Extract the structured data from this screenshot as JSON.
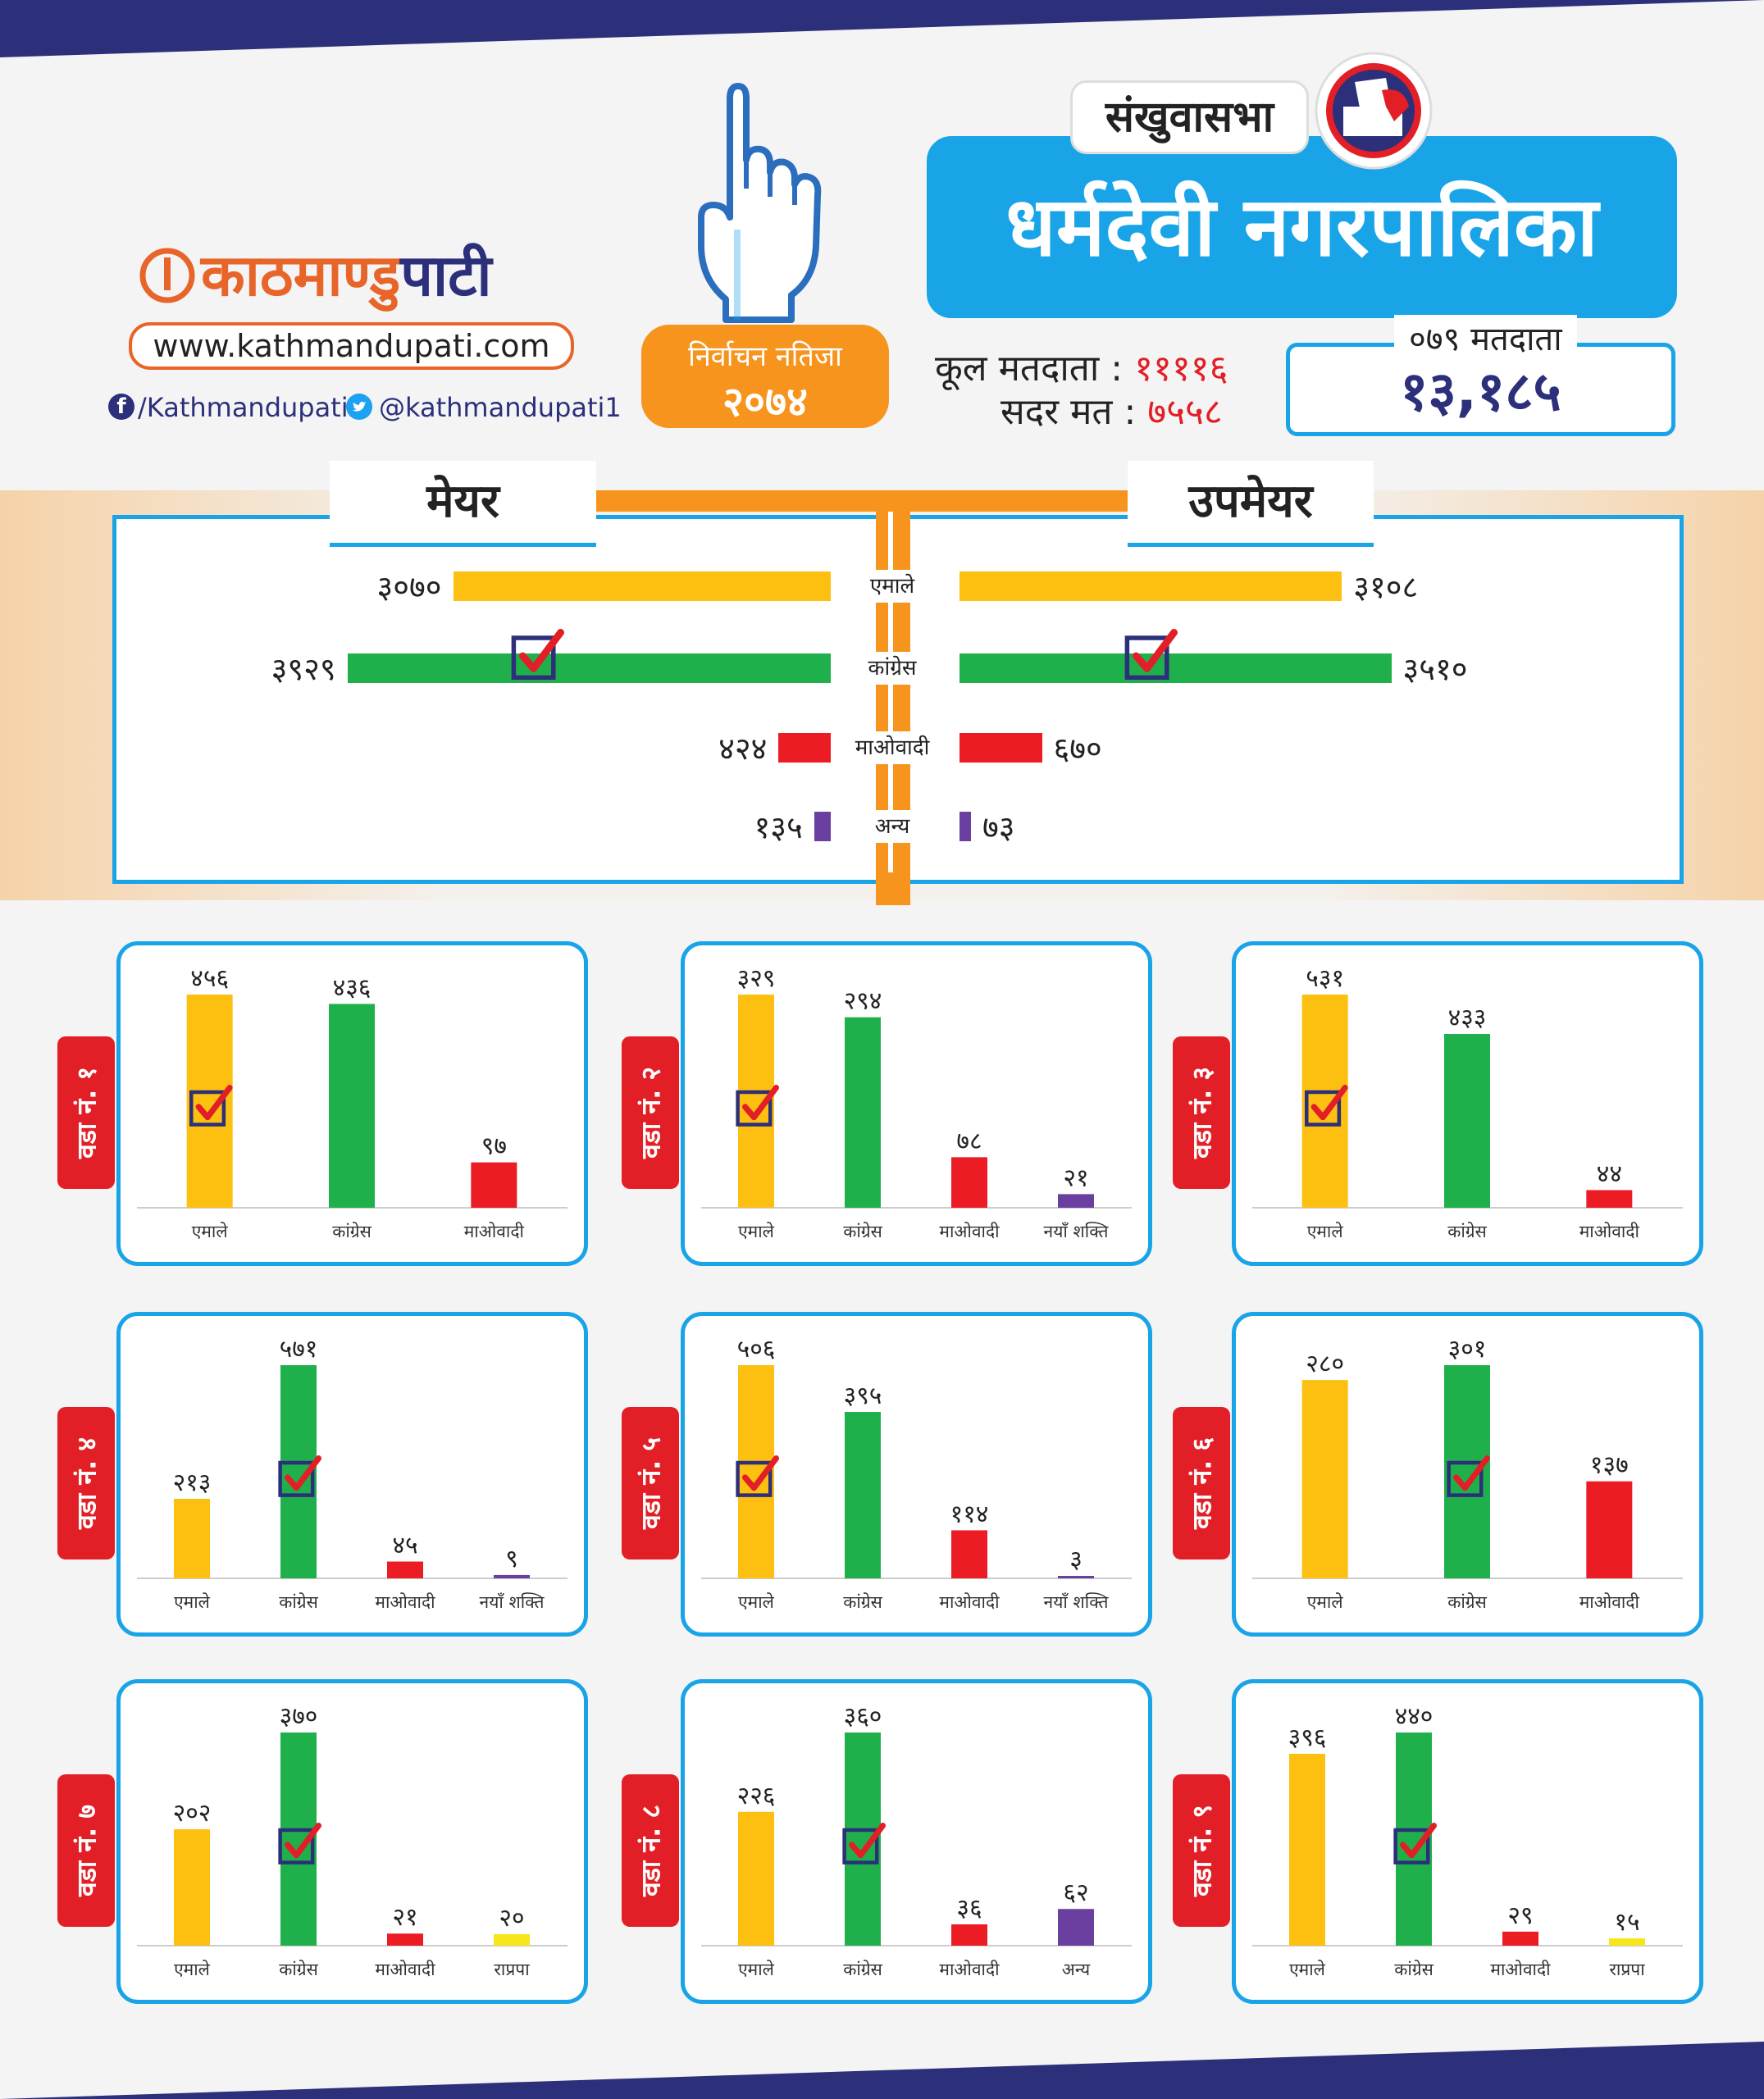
{
  "brand": {
    "logo_part1": "काठमाण्डु",
    "logo_part2": "पाटी",
    "website": "www.kathmandupati.com",
    "facebook": "/Kathmandupati",
    "twitter": "@kathmandupati1"
  },
  "election": {
    "label": "निर्वाचन नतिजा",
    "year": "२०७४"
  },
  "location": {
    "district": "संखुवासभा",
    "municipality": "धर्मदेवी  नगरपालिका"
  },
  "voters": {
    "total_label": "कूल मतदाता :",
    "total_value": "११११६",
    "valid_label": "सदर मत :",
    "valid_value": "७५५८",
    "voters_2079_label": "०७९ मतदाता",
    "voters_2079_value": "१३,१८५"
  },
  "colors": {
    "uml": "#fdc010",
    "congress": "#20b04b",
    "maoist": "#ec1c24",
    "other": "#6b3fa0",
    "rpp": "#f7e61c",
    "accent_blue": "#1aa4e8",
    "accent_orange": "#f7941d",
    "navy": "#2c2f7a"
  },
  "summary": {
    "mayor_label": "मेयर",
    "deputy_label": "उपमेयर",
    "parties": [
      "एमाले",
      "कांग्रेस",
      "माओवादी",
      "अन्य"
    ],
    "mayor_values_text": [
      "३०७०",
      "३९२९",
      "४२४",
      "१३५"
    ],
    "deputy_values_text": [
      "३१०८",
      "३५१०",
      "६७०",
      "७३"
    ]
  },
  "chart_data": [
    {
      "type": "bar",
      "title": "मेयर",
      "categories": [
        "एमाले",
        "कांग्रेस",
        "माओवादी",
        "अन्य"
      ],
      "values": [
        3070,
        3929,
        424,
        135
      ],
      "winner": "कांग्रेस"
    },
    {
      "type": "bar",
      "title": "उपमेयर",
      "categories": [
        "एमाले",
        "कांग्रेस",
        "माओवादी",
        "अन्य"
      ],
      "values": [
        3108,
        3510,
        670,
        73
      ],
      "winner": "कांग्रेस"
    },
    {
      "type": "bar",
      "title": "वडा नं. १",
      "categories": [
        "एमाले",
        "कांग्रेस",
        "माओवादी"
      ],
      "values": [
        456,
        436,
        97
      ],
      "labels": [
        "४५६",
        "४३६",
        "९७"
      ],
      "colors": [
        "uml",
        "congress",
        "maoist"
      ],
      "winner": 0
    },
    {
      "type": "bar",
      "title": "वडा नं. २",
      "categories": [
        "एमाले",
        "कांग्रेस",
        "माओवादी",
        "नयाँ शक्ति"
      ],
      "values": [
        329,
        294,
        78,
        21
      ],
      "labels": [
        "३२९",
        "२९४",
        "७८",
        "२१"
      ],
      "colors": [
        "uml",
        "congress",
        "maoist",
        "other"
      ],
      "winner": 0
    },
    {
      "type": "bar",
      "title": "वडा नं. ३",
      "categories": [
        "एमाले",
        "कांग्रेस",
        "माओवादी"
      ],
      "values": [
        531,
        433,
        44
      ],
      "labels": [
        "५३१",
        "४३३",
        "४४"
      ],
      "colors": [
        "uml",
        "congress",
        "maoist"
      ],
      "winner": 0
    },
    {
      "type": "bar",
      "title": "वडा नं. ४",
      "categories": [
        "एमाले",
        "कांग्रेस",
        "माओवादी",
        "नयाँ शक्ति"
      ],
      "values": [
        213,
        571,
        45,
        9
      ],
      "labels": [
        "२१३",
        "५७१",
        "४५",
        "९"
      ],
      "colors": [
        "uml",
        "congress",
        "maoist",
        "other"
      ],
      "winner": 1
    },
    {
      "type": "bar",
      "title": "वडा नं. ५",
      "categories": [
        "एमाले",
        "कांग्रेस",
        "माओवादी",
        "नयाँ शक्ति"
      ],
      "values": [
        506,
        395,
        114,
        3
      ],
      "labels": [
        "५०६",
        "३९५",
        "११४",
        "३"
      ],
      "colors": [
        "uml",
        "congress",
        "maoist",
        "other"
      ],
      "winner": 0
    },
    {
      "type": "bar",
      "title": "वडा नं. ६",
      "categories": [
        "एमाले",
        "कांग्रेस",
        "माओवादी"
      ],
      "values": [
        280,
        301,
        137
      ],
      "labels": [
        "२८०",
        "३०१",
        "१३७"
      ],
      "colors": [
        "uml",
        "congress",
        "maoist"
      ],
      "winner": 1
    },
    {
      "type": "bar",
      "title": "वडा नं. ७",
      "categories": [
        "एमाले",
        "कांग्रेस",
        "माओवादी",
        "राप्रपा"
      ],
      "values": [
        202,
        370,
        21,
        20
      ],
      "labels": [
        "२०२",
        "३७०",
        "२१",
        "२०"
      ],
      "colors": [
        "uml",
        "congress",
        "maoist",
        "rpp"
      ],
      "winner": 1
    },
    {
      "type": "bar",
      "title": "वडा नं. ८",
      "categories": [
        "एमाले",
        "कांग्रेस",
        "माओवादी",
        "अन्य"
      ],
      "values": [
        226,
        360,
        36,
        62
      ],
      "labels": [
        "२२६",
        "३६०",
        "३६",
        "६२"
      ],
      "colors": [
        "uml",
        "congress",
        "maoist",
        "other"
      ],
      "winner": 1
    },
    {
      "type": "bar",
      "title": "वडा नं. ९",
      "categories": [
        "एमाले",
        "कांग्रेस",
        "माओवादी",
        "राप्रपा"
      ],
      "values": [
        396,
        440,
        29,
        15
      ],
      "labels": [
        "३९६",
        "४४०",
        "२९",
        "१५"
      ],
      "colors": [
        "uml",
        "congress",
        "maoist",
        "rpp"
      ],
      "winner": 1
    }
  ]
}
